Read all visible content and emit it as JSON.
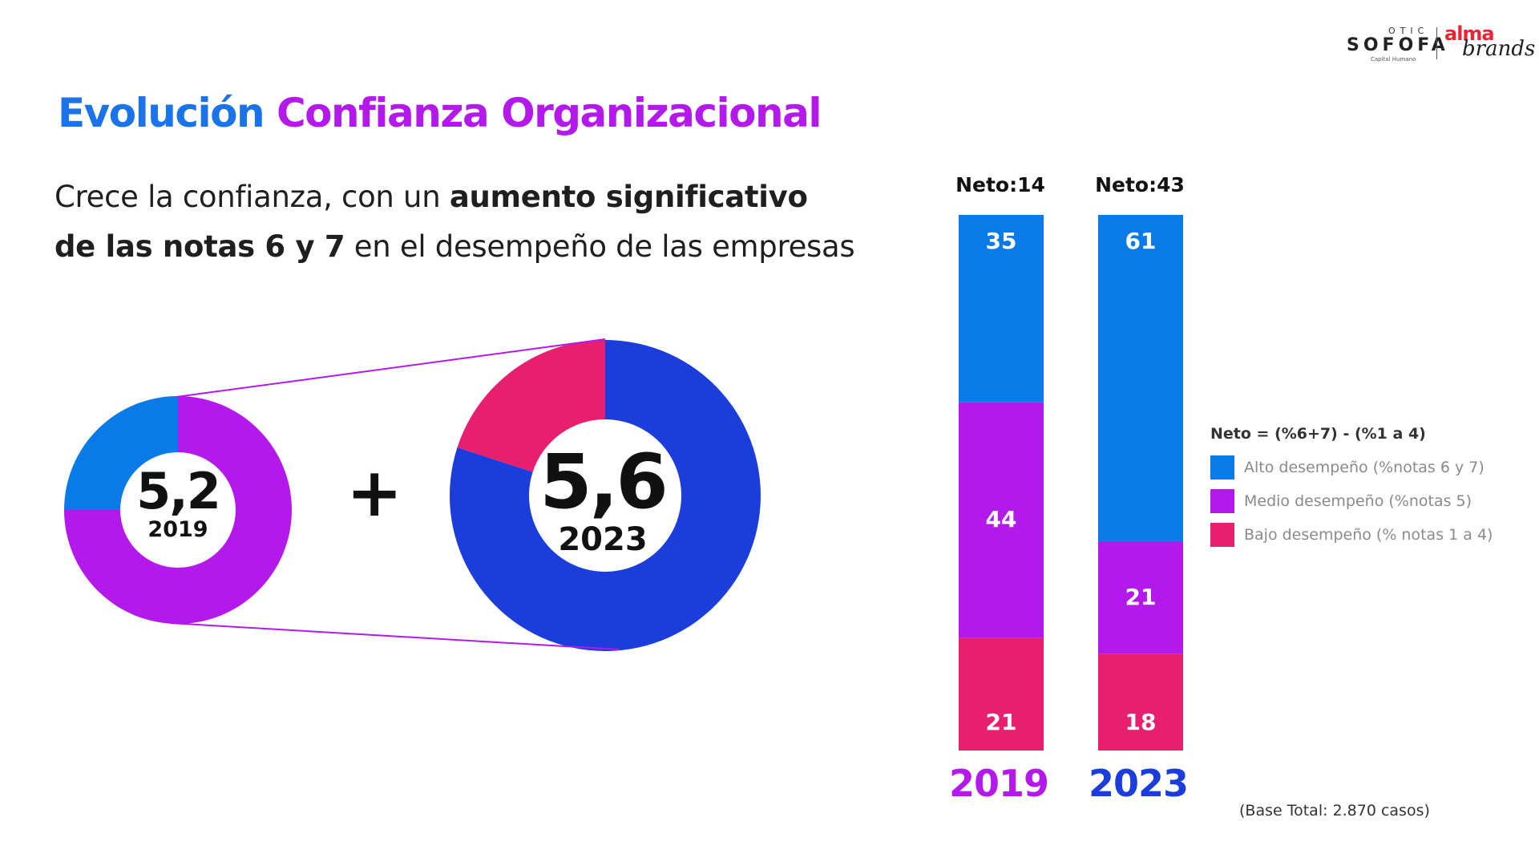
{
  "header": {
    "title_part1": "Evolución",
    "title_part2": "Confianza Organizacional",
    "subtitle_line1_normal": "Crece la confianza, con un ",
    "subtitle_line1_bold": "aumento significativo",
    "subtitle_line2_bold": "de las notas 6 y 7",
    "subtitle_line2_normal": " en el desempeño de las empresas"
  },
  "logo": {
    "otic": "OTIC",
    "sofofa": "SOFOFA",
    "capital": "Capital Humano",
    "alma": "alma",
    "brands": "brands"
  },
  "colors": {
    "alto": "#0a7ae8",
    "medio": "#b319ea",
    "bajo": "#e81f6e",
    "donut_2023_main": "#1a3ddb",
    "title_blue": "#1a73e8",
    "title_purple": "#b319ea",
    "year_2019": "#b319ea",
    "year_2023": "#1a3ddb"
  },
  "donuts": {
    "d2019": {
      "value": "5,2",
      "year": "2019",
      "segments": [
        {
          "share": 0.75,
          "color": "#b319ea"
        },
        {
          "share": 0.25,
          "color": "#0a7ae8"
        }
      ]
    },
    "d2023": {
      "value": "5,6",
      "year": "2023",
      "segments": [
        {
          "share": 0.8,
          "color": "#1a3ddb"
        },
        {
          "share": 0.2,
          "color": "#e81f6e"
        }
      ]
    },
    "plus": "+"
  },
  "chart_data": {
    "type": "bar",
    "stacked": true,
    "categories": [
      "2019",
      "2023"
    ],
    "series": [
      {
        "name": "Alto desempeño (%notas 6 y 7)",
        "values": [
          35,
          61
        ],
        "color": "#0a7ae8"
      },
      {
        "name": "Medio desempeño (%notas 5)",
        "values": [
          44,
          21
        ],
        "color": "#b319ea"
      },
      {
        "name": "Bajo desempeño (% notas 1 a 4)",
        "values": [
          21,
          18
        ],
        "color": "#e81f6e"
      }
    ],
    "neto_labels": [
      "Neto:14",
      "Neto:43"
    ],
    "legend_title": "Neto = (%6+7) - (%1 a 4)",
    "legend_position": "right",
    "ylim": [
      0,
      100
    ],
    "grid": false
  },
  "footer": {
    "base_note": "(Base Total: 2.870 casos)"
  }
}
